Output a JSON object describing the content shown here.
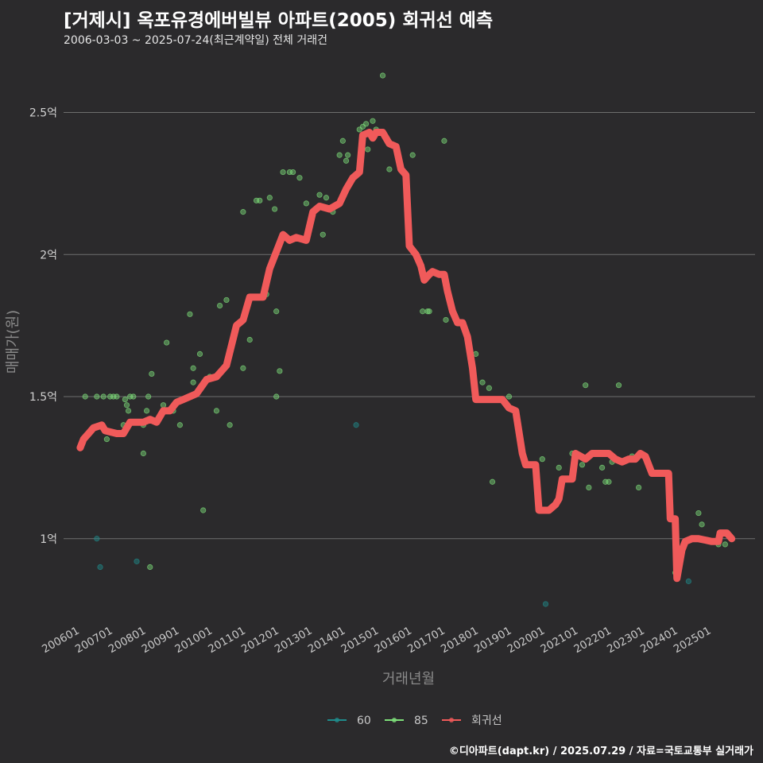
{
  "chart_data": {
    "type": "scatter",
    "title": "[거제시] 옥포유경에버빌뷰 아파트(2005) 회귀선 예측",
    "subtitle": "2006-03-03 ~ 2025-07-24(최근계약일) 전체 거래건",
    "caption": "©디아파트(dapt.kr) / 2025.07.29 / 자료=국토교통부 실거래가",
    "xlabel": "거래년월",
    "ylabel": "매매가(원)",
    "xlim": [
      2005.6,
      2026.4
    ],
    "ylim": [
      0.7,
      2.7
    ],
    "yticks": [
      {
        "value": 1.0,
        "label": "1억"
      },
      {
        "value": 1.5,
        "label": "1.5억"
      },
      {
        "value": 2.0,
        "label": "2억"
      },
      {
        "value": 2.5,
        "label": "2.5억"
      }
    ],
    "xticks": [
      {
        "value": 2006.0,
        "label": "200601"
      },
      {
        "value": 2007.0,
        "label": "200701"
      },
      {
        "value": 2008.0,
        "label": "200801"
      },
      {
        "value": 2009.0,
        "label": "200901"
      },
      {
        "value": 2010.0,
        "label": "201001"
      },
      {
        "value": 2011.0,
        "label": "201101"
      },
      {
        "value": 2012.0,
        "label": "201201"
      },
      {
        "value": 2013.0,
        "label": "201301"
      },
      {
        "value": 2014.0,
        "label": "201401"
      },
      {
        "value": 2015.0,
        "label": "201501"
      },
      {
        "value": 2016.0,
        "label": "201601"
      },
      {
        "value": 2017.0,
        "label": "201701"
      },
      {
        "value": 2018.0,
        "label": "201801"
      },
      {
        "value": 2019.0,
        "label": "201901"
      },
      {
        "value": 2020.0,
        "label": "202001"
      },
      {
        "value": 2021.0,
        "label": "202101"
      },
      {
        "value": 2022.0,
        "label": "202201"
      },
      {
        "value": 2023.0,
        "label": "202301"
      },
      {
        "value": 2024.0,
        "label": "202401"
      },
      {
        "value": 2025.0,
        "label": "202501"
      }
    ],
    "legend": [
      {
        "name": "60",
        "color": "#1f8c8c"
      },
      {
        "name": "85",
        "color": "#7ee07a"
      },
      {
        "name": "회귀선",
        "color": "#f05a5a"
      }
    ],
    "series": [
      {
        "name": "60",
        "color": "#1f8c8c",
        "points": [
          [
            2006.6,
            1.0
          ],
          [
            2006.7,
            0.9
          ],
          [
            2007.8,
            0.92
          ],
          [
            2014.4,
            1.4
          ],
          [
            2020.1,
            0.77
          ],
          [
            2024.4,
            0.85
          ]
        ]
      },
      {
        "name": "85",
        "color": "#7ee07a",
        "points": [
          [
            2006.25,
            1.5
          ],
          [
            2006.6,
            1.5
          ],
          [
            2006.8,
            1.5
          ],
          [
            2007.0,
            1.5
          ],
          [
            2007.1,
            1.5
          ],
          [
            2007.2,
            1.5
          ],
          [
            2007.45,
            1.49
          ],
          [
            2007.6,
            1.5
          ],
          [
            2007.7,
            1.5
          ],
          [
            2007.5,
            1.47
          ],
          [
            2007.55,
            1.45
          ],
          [
            2006.9,
            1.35
          ],
          [
            2007.4,
            1.4
          ],
          [
            2008.0,
            1.4
          ],
          [
            2008.1,
            1.45
          ],
          [
            2008.15,
            1.5
          ],
          [
            2008.2,
            0.9
          ],
          [
            2008.25,
            1.58
          ],
          [
            2008.0,
            1.3
          ],
          [
            2008.6,
            1.47
          ],
          [
            2008.7,
            1.69
          ],
          [
            2008.9,
            1.45
          ],
          [
            2009.1,
            1.4
          ],
          [
            2009.4,
            1.79
          ],
          [
            2009.5,
            1.6
          ],
          [
            2009.5,
            1.55
          ],
          [
            2009.7,
            1.65
          ],
          [
            2009.8,
            1.1
          ],
          [
            2010.0,
            1.57
          ],
          [
            2010.2,
            1.45
          ],
          [
            2010.3,
            1.82
          ],
          [
            2010.5,
            1.84
          ],
          [
            2010.6,
            1.4
          ],
          [
            2011.0,
            2.15
          ],
          [
            2011.0,
            1.6
          ],
          [
            2011.2,
            1.7
          ],
          [
            2011.4,
            2.19
          ],
          [
            2011.5,
            2.19
          ],
          [
            2011.7,
            1.86
          ],
          [
            2011.8,
            2.2
          ],
          [
            2011.95,
            2.16
          ],
          [
            2012.0,
            1.8
          ],
          [
            2012.0,
            1.5
          ],
          [
            2012.1,
            1.59
          ],
          [
            2012.2,
            2.29
          ],
          [
            2012.4,
            2.29
          ],
          [
            2012.5,
            2.29
          ],
          [
            2012.7,
            2.27
          ],
          [
            2012.9,
            2.18
          ],
          [
            2013.3,
            2.21
          ],
          [
            2013.4,
            2.07
          ],
          [
            2013.5,
            2.2
          ],
          [
            2013.6,
            2.16
          ],
          [
            2013.7,
            2.15
          ],
          [
            2013.9,
            2.35
          ],
          [
            2014.0,
            2.4
          ],
          [
            2014.1,
            2.33
          ],
          [
            2014.15,
            2.35
          ],
          [
            2014.5,
            2.44
          ],
          [
            2014.6,
            2.45
          ],
          [
            2014.7,
            2.46
          ],
          [
            2014.75,
            2.37
          ],
          [
            2014.9,
            2.47
          ],
          [
            2015.0,
            2.44
          ],
          [
            2015.2,
            2.63
          ],
          [
            2015.4,
            2.3
          ],
          [
            2016.1,
            2.35
          ],
          [
            2016.4,
            1.8
          ],
          [
            2016.55,
            1.8
          ],
          [
            2016.6,
            1.8
          ],
          [
            2017.05,
            2.4
          ],
          [
            2017.1,
            1.77
          ],
          [
            2018.0,
            1.65
          ],
          [
            2018.2,
            1.55
          ],
          [
            2018.4,
            1.53
          ],
          [
            2018.5,
            1.2
          ],
          [
            2019.0,
            1.5
          ],
          [
            2020.0,
            1.28
          ],
          [
            2020.5,
            1.25
          ],
          [
            2020.9,
            1.3
          ],
          [
            2021.2,
            1.26
          ],
          [
            2021.3,
            1.54
          ],
          [
            2021.4,
            1.18
          ],
          [
            2021.8,
            1.25
          ],
          [
            2021.9,
            1.2
          ],
          [
            2022.0,
            1.2
          ],
          [
            2022.1,
            1.27
          ],
          [
            2022.3,
            1.54
          ],
          [
            2022.4,
            1.27
          ],
          [
            2022.7,
            1.29
          ],
          [
            2022.9,
            1.18
          ],
          [
            2023.1,
            1.29
          ],
          [
            2024.0,
            0.88
          ],
          [
            2024.7,
            1.09
          ],
          [
            2024.8,
            1.05
          ],
          [
            2025.3,
            0.98
          ],
          [
            2025.5,
            0.98
          ]
        ]
      }
    ],
    "regression": [
      [
        2006.1,
        1.32
      ],
      [
        2006.2,
        1.35
      ],
      [
        2006.35,
        1.37
      ],
      [
        2006.5,
        1.39
      ],
      [
        2006.75,
        1.4
      ],
      [
        2006.85,
        1.38
      ],
      [
        2007.2,
        1.37
      ],
      [
        2007.4,
        1.37
      ],
      [
        2007.6,
        1.41
      ],
      [
        2008.0,
        1.41
      ],
      [
        2008.2,
        1.42
      ],
      [
        2008.4,
        1.41
      ],
      [
        2008.6,
        1.45
      ],
      [
        2008.8,
        1.45
      ],
      [
        2009.0,
        1.48
      ],
      [
        2009.2,
        1.49
      ],
      [
        2009.6,
        1.51
      ],
      [
        2009.9,
        1.56
      ],
      [
        2010.2,
        1.57
      ],
      [
        2010.5,
        1.61
      ],
      [
        2010.8,
        1.75
      ],
      [
        2011.0,
        1.77
      ],
      [
        2011.2,
        1.85
      ],
      [
        2011.6,
        1.85
      ],
      [
        2011.8,
        1.95
      ],
      [
        2012.0,
        2.01
      ],
      [
        2012.2,
        2.07
      ],
      [
        2012.4,
        2.05
      ],
      [
        2012.6,
        2.06
      ],
      [
        2012.9,
        2.05
      ],
      [
        2013.1,
        2.15
      ],
      [
        2013.3,
        2.17
      ],
      [
        2013.6,
        2.16
      ],
      [
        2013.9,
        2.18
      ],
      [
        2014.1,
        2.23
      ],
      [
        2014.3,
        2.27
      ],
      [
        2014.5,
        2.29
      ],
      [
        2014.6,
        2.42
      ],
      [
        2014.8,
        2.43
      ],
      [
        2014.9,
        2.41
      ],
      [
        2015.0,
        2.43
      ],
      [
        2015.2,
        2.43
      ],
      [
        2015.4,
        2.39
      ],
      [
        2015.6,
        2.38
      ],
      [
        2015.75,
        2.3
      ],
      [
        2015.9,
        2.28
      ],
      [
        2016.0,
        2.03
      ],
      [
        2016.2,
        2.0
      ],
      [
        2016.35,
        1.96
      ],
      [
        2016.45,
        1.91
      ],
      [
        2016.6,
        1.93
      ],
      [
        2016.7,
        1.94
      ],
      [
        2016.9,
        1.93
      ],
      [
        2017.05,
        1.93
      ],
      [
        2017.15,
        1.87
      ],
      [
        2017.3,
        1.8
      ],
      [
        2017.45,
        1.76
      ],
      [
        2017.6,
        1.76
      ],
      [
        2017.75,
        1.71
      ],
      [
        2017.9,
        1.6
      ],
      [
        2018.0,
        1.49
      ],
      [
        2018.3,
        1.49
      ],
      [
        2018.6,
        1.49
      ],
      [
        2018.8,
        1.49
      ],
      [
        2019.0,
        1.46
      ],
      [
        2019.2,
        1.45
      ],
      [
        2019.4,
        1.3
      ],
      [
        2019.5,
        1.26
      ],
      [
        2019.8,
        1.26
      ],
      [
        2019.9,
        1.1
      ],
      [
        2020.2,
        1.1
      ],
      [
        2020.4,
        1.12
      ],
      [
        2020.5,
        1.14
      ],
      [
        2020.6,
        1.21
      ],
      [
        2020.9,
        1.21
      ],
      [
        2021.0,
        1.3
      ],
      [
        2021.3,
        1.28
      ],
      [
        2021.5,
        1.3
      ],
      [
        2021.8,
        1.3
      ],
      [
        2022.0,
        1.3
      ],
      [
        2022.2,
        1.28
      ],
      [
        2022.4,
        1.27
      ],
      [
        2022.6,
        1.28
      ],
      [
        2022.8,
        1.28
      ],
      [
        2022.95,
        1.3
      ],
      [
        2023.1,
        1.29
      ],
      [
        2023.3,
        1.23
      ],
      [
        2023.5,
        1.23
      ],
      [
        2023.8,
        1.23
      ],
      [
        2023.85,
        1.07
      ],
      [
        2024.0,
        1.07
      ],
      [
        2024.05,
        0.86
      ],
      [
        2024.2,
        0.96
      ],
      [
        2024.3,
        0.99
      ],
      [
        2024.5,
        1.0
      ],
      [
        2024.7,
        1.0
      ],
      [
        2024.9,
        0.995
      ],
      [
        2025.1,
        0.99
      ],
      [
        2025.3,
        0.99
      ],
      [
        2025.35,
        1.02
      ],
      [
        2025.55,
        1.02
      ],
      [
        2025.7,
        1.0
      ]
    ]
  }
}
